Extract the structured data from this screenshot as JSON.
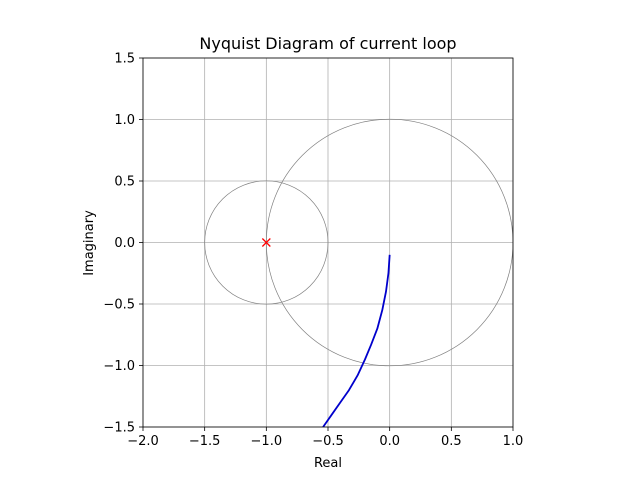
{
  "chart_data": {
    "type": "line",
    "title": "Nyquist Diagram of current loop",
    "xlabel": "Real",
    "ylabel": "Imaginary",
    "xlim": [
      -2.0,
      1.0
    ],
    "ylim": [
      -1.5,
      1.5
    ],
    "grid": true,
    "x_ticks": [
      -2.0,
      -1.5,
      -1.0,
      -0.5,
      0.0,
      0.5,
      1.0
    ],
    "x_tick_labels": [
      "−2.0",
      "−1.5",
      "−1.0",
      "−0.5",
      "0.0",
      "0.5",
      "1.0"
    ],
    "y_ticks": [
      -1.5,
      -1.0,
      -0.5,
      0.0,
      0.5,
      1.0,
      1.5
    ],
    "y_tick_labels": [
      "−1.5",
      "−1.0",
      "−0.5",
      "0.0",
      "0.5",
      "1.0",
      "1.5"
    ],
    "circles": [
      {
        "center": [
          0.0,
          0.0
        ],
        "radius": 1.0,
        "color": "#808080"
      },
      {
        "center": [
          -1.0,
          0.0
        ],
        "radius": 0.5,
        "color": "#808080"
      }
    ],
    "critical_point": {
      "x": -1.0,
      "y": 0.0,
      "marker": "x",
      "color": "#ff0000"
    },
    "series": [
      {
        "color": "#0000cc",
        "x": [
          0.0,
          -0.01,
          -0.03,
          -0.06,
          -0.1,
          -0.15,
          -0.2,
          -0.26,
          -0.33,
          -0.4,
          -0.47,
          -0.54
        ],
        "y": [
          -0.1,
          -0.25,
          -0.4,
          -0.55,
          -0.7,
          -0.83,
          -0.95,
          -1.08,
          -1.2,
          -1.3,
          -1.4,
          -1.5
        ]
      }
    ]
  }
}
